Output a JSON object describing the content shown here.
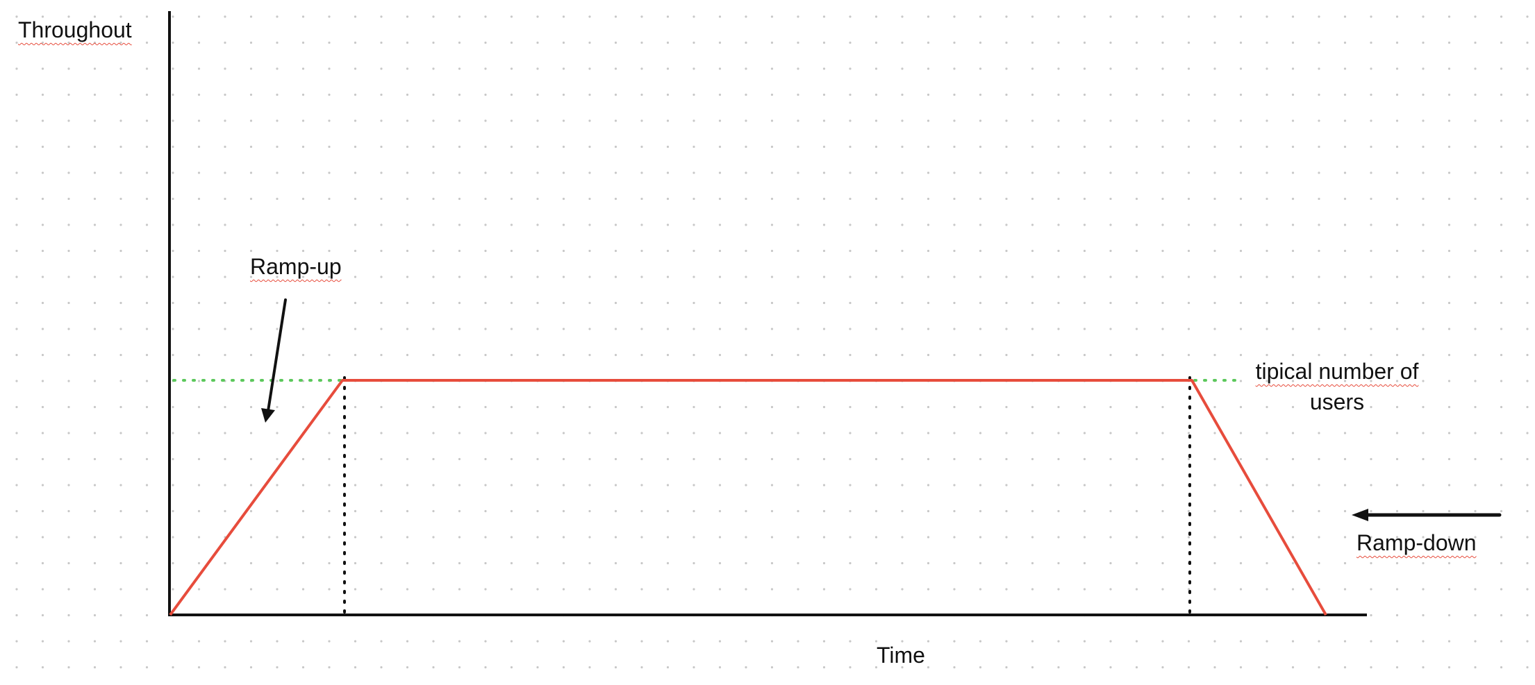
{
  "diagram": {
    "y_axis_label": "Throughout",
    "x_axis_label": "Time",
    "annotations": {
      "ramp_up": "Ramp-up",
      "ramp_down": "Ramp-down",
      "typical_line1": "tipical number of",
      "typical_line2": "users"
    },
    "colors": {
      "load_curve": "#e74c3c",
      "typical_level_line": "#5cc85c",
      "axes": "#111111",
      "grid_dots": "#c8c8c8",
      "spellcheck_underline": "#e74c3c"
    },
    "phases": [
      "ramp-up",
      "steady-state",
      "ramp-down"
    ],
    "icons": [
      "arrow-ramp-up-icon",
      "arrow-ramp-down-icon"
    ]
  }
}
